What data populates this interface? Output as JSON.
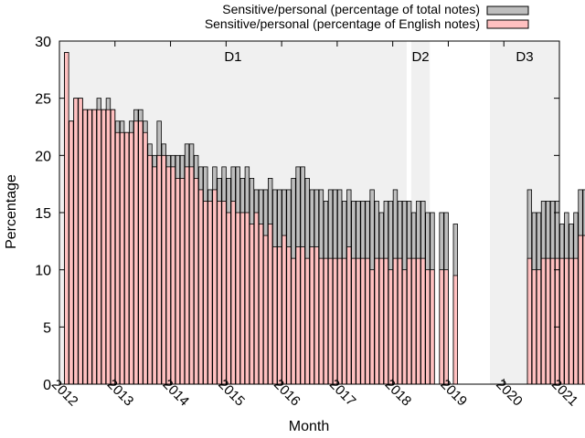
{
  "chart_data": {
    "type": "bar",
    "xlabel": "Month",
    "ylabel": "Percentage",
    "ylim": [
      0,
      30
    ],
    "xlim": [
      "2012-01",
      "2021-01"
    ],
    "y_ticks": [
      0,
      5,
      10,
      15,
      20,
      25,
      30
    ],
    "x_tick_labels": [
      "2012",
      "2013",
      "2014",
      "2015",
      "2016",
      "2017",
      "2018",
      "2019",
      "2020",
      "2021"
    ],
    "grid": false,
    "legend_position": "top-right",
    "regions": [
      {
        "label": "D1",
        "start": "2012-01",
        "end": "2018-04"
      },
      {
        "label": "D2",
        "start": "2018-05",
        "end": "2018-09"
      },
      {
        "label": "D3",
        "start": "2019-10",
        "end": "2021-01"
      }
    ],
    "region_fill": "#f0f0f0",
    "series": [
      {
        "name": "Sensitive/personal (percentage of total notes)",
        "color": "#bebebe",
        "start": "2012-02",
        "values": [
          29,
          23,
          25,
          25,
          24,
          24,
          24,
          25,
          24,
          25,
          24,
          23,
          23,
          22,
          23,
          24,
          24,
          23,
          21,
          20,
          23,
          21,
          20,
          20,
          20,
          20,
          21,
          21,
          20,
          19,
          19,
          17,
          19,
          18,
          19,
          18,
          19,
          19,
          18,
          19,
          18,
          17,
          17,
          17,
          18,
          17,
          17,
          17,
          17,
          18,
          19,
          19,
          18,
          17,
          17,
          17,
          16,
          17,
          17,
          17,
          16,
          17,
          16,
          16,
          16,
          16,
          17,
          16,
          15,
          16,
          16,
          17,
          16,
          16,
          16,
          15,
          16,
          16,
          15,
          15,
          null,
          15,
          15,
          null,
          14,
          null,
          null,
          null,
          null,
          null,
          null,
          null,
          null,
          null,
          null,
          null,
          null,
          null,
          null,
          null,
          17,
          15,
          15,
          16,
          16,
          16,
          16,
          14,
          15,
          14,
          15,
          17,
          17
        ],
        "shown_as": "bar total height (overlaid)"
      },
      {
        "name": "Sensitive/personal (percentage of English notes)",
        "color": "#ffc0c0",
        "start": "2012-02",
        "values": [
          29,
          23,
          25,
          25,
          24,
          24,
          24,
          24,
          24,
          24,
          24,
          22,
          22,
          22,
          22,
          23,
          23,
          22,
          20,
          19,
          20,
          20,
          19,
          19,
          18,
          18,
          19,
          19,
          18,
          17,
          16,
          16,
          17,
          16,
          16,
          15,
          16,
          15,
          15,
          15,
          14,
          15,
          14,
          13,
          14,
          12,
          12,
          13,
          12,
          11,
          12,
          12,
          11,
          12,
          12,
          11,
          11,
          11,
          11,
          11,
          11,
          12,
          11,
          11,
          11,
          11,
          10,
          11,
          11,
          11,
          10,
          11,
          11,
          10,
          11,
          11,
          11,
          11,
          10,
          10,
          null,
          10,
          10,
          null,
          9.5,
          null,
          null,
          null,
          null,
          null,
          null,
          null,
          null,
          null,
          null,
          null,
          null,
          null,
          null,
          null,
          11,
          10,
          10,
          11,
          11,
          11,
          11,
          11,
          11,
          11,
          11,
          13,
          13
        ],
        "shown_as": "bar height (front)"
      }
    ]
  }
}
